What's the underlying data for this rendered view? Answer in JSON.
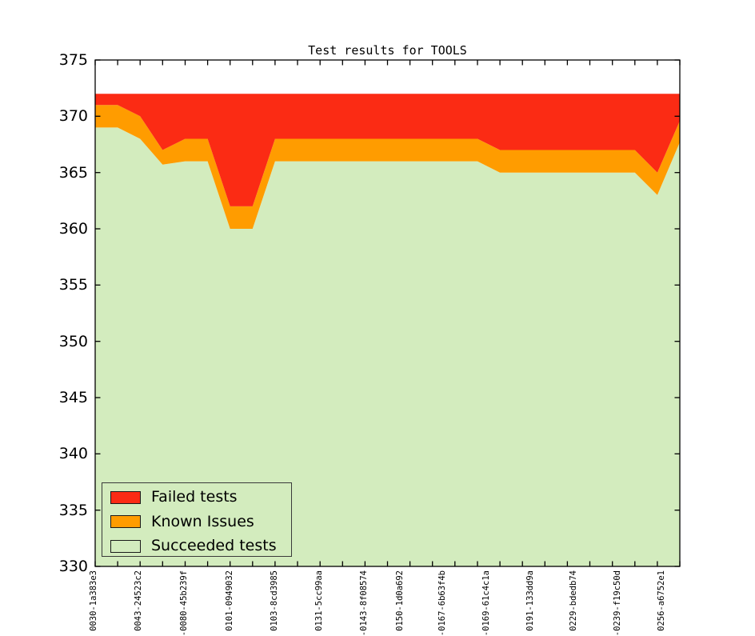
{
  "title": "Test results for TOOLS",
  "colors": {
    "failed": "#fb2b14",
    "known_issues": "#ff9c00",
    "succeeded": "#d3ecbe",
    "axis": "#000000",
    "text": "#000000",
    "legend_border": "#3a3a3a",
    "background": "#ffffff"
  },
  "legend": {
    "items": [
      {
        "label": "Failed tests",
        "series": "failed"
      },
      {
        "label": "Known Issues",
        "series": "known_issues"
      },
      {
        "label": "Succeeded tests",
        "series": "succeeded"
      }
    ]
  },
  "y_axis": {
    "min": 330,
    "max": 375,
    "step": 5,
    "tick_labels": [
      "375",
      "370",
      "365",
      "360",
      "355",
      "350",
      "345",
      "340",
      "335",
      "330"
    ]
  },
  "x_axis": {
    "tick_labels": [
      "0030-1a383e3",
      "0043-24523c2",
      "-0080-45b239f",
      "0101-0949032",
      "0103-8cd3985",
      "0131-5cc99aa",
      "-0143-8f08574",
      "0150-1d0a692",
      "-0167-6b63f4b",
      "-0169-61c4c1a",
      "0191-133dd9a",
      "0229-bdedb74",
      "-0239-f19c50d",
      "0256-a6752e1"
    ],
    "labels_every_other_point": true
  },
  "chart_data": {
    "type": "area",
    "stacked": true,
    "title": "Test results for TOOLS",
    "num_points": 27,
    "total_tests": 372,
    "ylim": [
      330,
      375
    ],
    "grid": false,
    "legend_position": "lower left",
    "x_tick_labels": [
      "0030-1a383e3",
      "0043-24523c2",
      "-0080-45b239f",
      "0101-0949032",
      "0103-8cd3985",
      "0131-5cc99aa",
      "-0143-8f08574",
      "0150-1d0a692",
      "-0167-6b63f4b",
      "-0169-61c4c1a",
      "0191-133dd9a",
      "0229-bdedb74",
      "-0239-f19c50d",
      "0256-a6752e1"
    ],
    "series": [
      {
        "name": "Succeeded tests",
        "key": "succeeded",
        "values": [
          369,
          369,
          368,
          365.7,
          366,
          366,
          360,
          360,
          366,
          366,
          366,
          366,
          366,
          366,
          366,
          366,
          366,
          366,
          365,
          365,
          365,
          365,
          365,
          365,
          365,
          363,
          367.7
        ]
      },
      {
        "name": "Known Issues",
        "key": "known_issues",
        "values": [
          2,
          2,
          2,
          1.3,
          2,
          2,
          2,
          2,
          2,
          2,
          2,
          2,
          2,
          2,
          2,
          2,
          2,
          2,
          2,
          2,
          2,
          2,
          2,
          2,
          2,
          2,
          1.9
        ]
      },
      {
        "name": "Failed tests",
        "key": "failed",
        "values": [
          1,
          1,
          2,
          5,
          4,
          4,
          10,
          10,
          4,
          4,
          4,
          4,
          4,
          4,
          4,
          4,
          4,
          4,
          5,
          5,
          5,
          5,
          5,
          5,
          5,
          7,
          2.4
        ]
      }
    ]
  }
}
